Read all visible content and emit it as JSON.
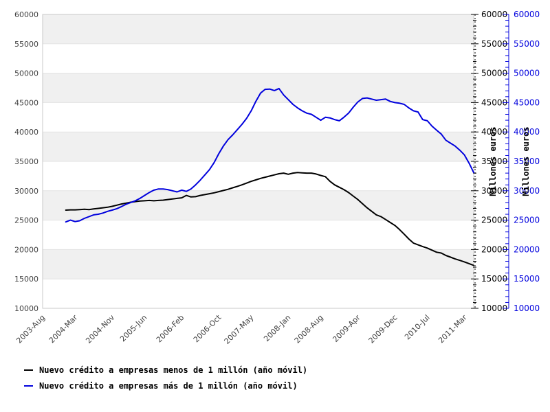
{
  "chart_data": {
    "type": "line",
    "title": "",
    "units": "Millones euros",
    "x_axis": {
      "tick_labels": [
        "2003-Aug",
        "2004-Mar",
        "2004-Nov",
        "2005-Jun",
        "2006-Feb",
        "2006-Oct",
        "2007-May",
        "2008-Jan",
        "2008-Aug",
        "2009-Apr",
        "2009-Dec",
        "2010-Jul",
        "2011-Mar"
      ],
      "tick_months_from_start": [
        0,
        7,
        15,
        22,
        30,
        38,
        45,
        53,
        60,
        68,
        76,
        83,
        91
      ],
      "range_months": [
        0,
        93
      ]
    },
    "y_axis": {
      "min": 10000,
      "max": 60000,
      "major_step": 5000,
      "minor_step": 1000,
      "tick_labels": [
        "60000",
        "55000",
        "50000",
        "45000",
        "40000",
        "35000",
        "30000",
        "25000",
        "20000",
        "15000",
        "10000"
      ],
      "right_label": "Millones euros"
    },
    "grid": "horizontal-bands",
    "legend_position": "bottom-left",
    "series": [
      {
        "name": "Nuevo crédito a empresas menos de 1 millón (año móvil)",
        "color": "#000000",
        "start_month_offset": 5,
        "start_label": "2004-Jan",
        "end_label": "2011-May",
        "values": [
          26700,
          26750,
          26750,
          26800,
          26850,
          26800,
          26900,
          27000,
          27100,
          27200,
          27350,
          27550,
          27750,
          27900,
          28050,
          28150,
          28250,
          28300,
          28350,
          28300,
          28350,
          28400,
          28500,
          28600,
          28700,
          28800,
          29200,
          28950,
          29000,
          29200,
          29350,
          29500,
          29650,
          29850,
          30050,
          30250,
          30500,
          30750,
          31000,
          31300,
          31600,
          31850,
          32100,
          32300,
          32500,
          32700,
          32900,
          33000,
          32800,
          33000,
          33100,
          33050,
          33000,
          33000,
          32850,
          32600,
          32400,
          31600,
          31000,
          30600,
          30200,
          29700,
          29100,
          28500,
          27800,
          27100,
          26500,
          25900,
          25600,
          25100,
          24600,
          24100,
          23400,
          22600,
          21800,
          21100,
          20800,
          20500,
          20250,
          19900,
          19550,
          19400,
          19000,
          18700,
          18400,
          18150,
          17900,
          17600,
          17300
        ]
      },
      {
        "name": "Nuevo crédito a empresas más de 1 millón (año móvil)",
        "color": "#0000dd",
        "start_month_offset": 5,
        "start_label": "2004-Jan",
        "end_label": "2011-May",
        "values": [
          24700,
          25000,
          24750,
          24900,
          25300,
          25600,
          25900,
          26000,
          26200,
          26500,
          26700,
          26950,
          27300,
          27700,
          28000,
          28300,
          28700,
          29200,
          29700,
          30100,
          30300,
          30300,
          30200,
          30000,
          29800,
          30100,
          29900,
          30300,
          31000,
          31800,
          32700,
          33600,
          34800,
          36300,
          37600,
          38700,
          39500,
          40400,
          41300,
          42300,
          43600,
          45200,
          46600,
          47250,
          47300,
          47050,
          47400,
          46300,
          45500,
          44700,
          44100,
          43600,
          43200,
          43000,
          42500,
          42000,
          42500,
          42400,
          42100,
          41900,
          42500,
          43200,
          44200,
          45100,
          45700,
          45800,
          45600,
          45400,
          45500,
          45600,
          45200,
          45000,
          44900,
          44700,
          44100,
          43600,
          43400,
          42100,
          41900,
          41000,
          40300,
          39650,
          38600,
          38100,
          37600,
          36900,
          36100,
          34700,
          33100
        ]
      }
    ],
    "background_bands": {
      "color_a": "#f0f0f0",
      "color_b": "#ffffff"
    }
  },
  "colors": {
    "plot_border": "#c8c8c8",
    "gridline": "#e2e2e2",
    "tick_text": "#3f3f3f",
    "right_axis_text": "#000000",
    "blue_axis": "#0000dd",
    "axis_title_text": "#000000"
  }
}
